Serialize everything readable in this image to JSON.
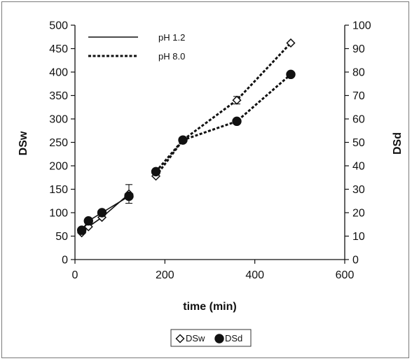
{
  "chart_data": {
    "type": "line",
    "x_axis": {
      "label": "time (min)",
      "range": [
        0,
        600
      ],
      "ticks": [
        "0",
        "200",
        "400",
        "600"
      ]
    },
    "y_axis_left": {
      "label": "DSw",
      "range": [
        0,
        500
      ],
      "ticks": [
        "0",
        "50",
        "100",
        "150",
        "200",
        "250",
        "300",
        "350",
        "400",
        "450",
        "500"
      ]
    },
    "y_axis_right": {
      "label": "DSd",
      "range": [
        0,
        100
      ],
      "ticks": [
        "0",
        "10",
        "20",
        "30",
        "40",
        "50",
        "60",
        "70",
        "80",
        "90",
        "100"
      ]
    },
    "grid": false,
    "line_style_legend": {
      "placement": "top-left",
      "entries": [
        {
          "label": "pH 1.2",
          "style": "solid"
        },
        {
          "label": "pH 8.0",
          "style": "dotted"
        }
      ]
    },
    "marker_legend": {
      "placement": "bottom-center",
      "entries": [
        {
          "label": "DSw",
          "marker": "open-diamond"
        },
        {
          "label": "DSd",
          "marker": "filled-circle"
        }
      ]
    },
    "series": [
      {
        "name": "DSw",
        "axis": "left",
        "marker": "open-diamond",
        "segments": [
          {
            "condition": "pH 1.2",
            "style": "solid",
            "points": [
              [
                15,
                57
              ],
              [
                30,
                70
              ],
              [
                60,
                90
              ],
              [
                120,
                140
              ]
            ],
            "error_bars": [
              0,
              0,
              0,
              20
            ]
          },
          {
            "condition": "pH 8.0",
            "style": "dotted",
            "points": [
              [
                180,
                178
              ],
              [
                240,
                255
              ],
              [
                360,
                340
              ],
              [
                480,
                462
              ]
            ],
            "error_bars": [
              0,
              0,
              8,
              0
            ]
          }
        ]
      },
      {
        "name": "DSd",
        "axis": "right",
        "marker": "filled-circle",
        "segments": [
          {
            "condition": "pH 1.2",
            "style": "solid",
            "points": [
              [
                15,
                12.5
              ],
              [
                30,
                16.5
              ],
              [
                60,
                20
              ],
              [
                120,
                27
              ]
            ]
          },
          {
            "condition": "pH 8.0",
            "style": "dotted",
            "points": [
              [
                180,
                37.5
              ],
              [
                240,
                51
              ],
              [
                360,
                59
              ],
              [
                480,
                79
              ]
            ]
          }
        ]
      }
    ]
  }
}
